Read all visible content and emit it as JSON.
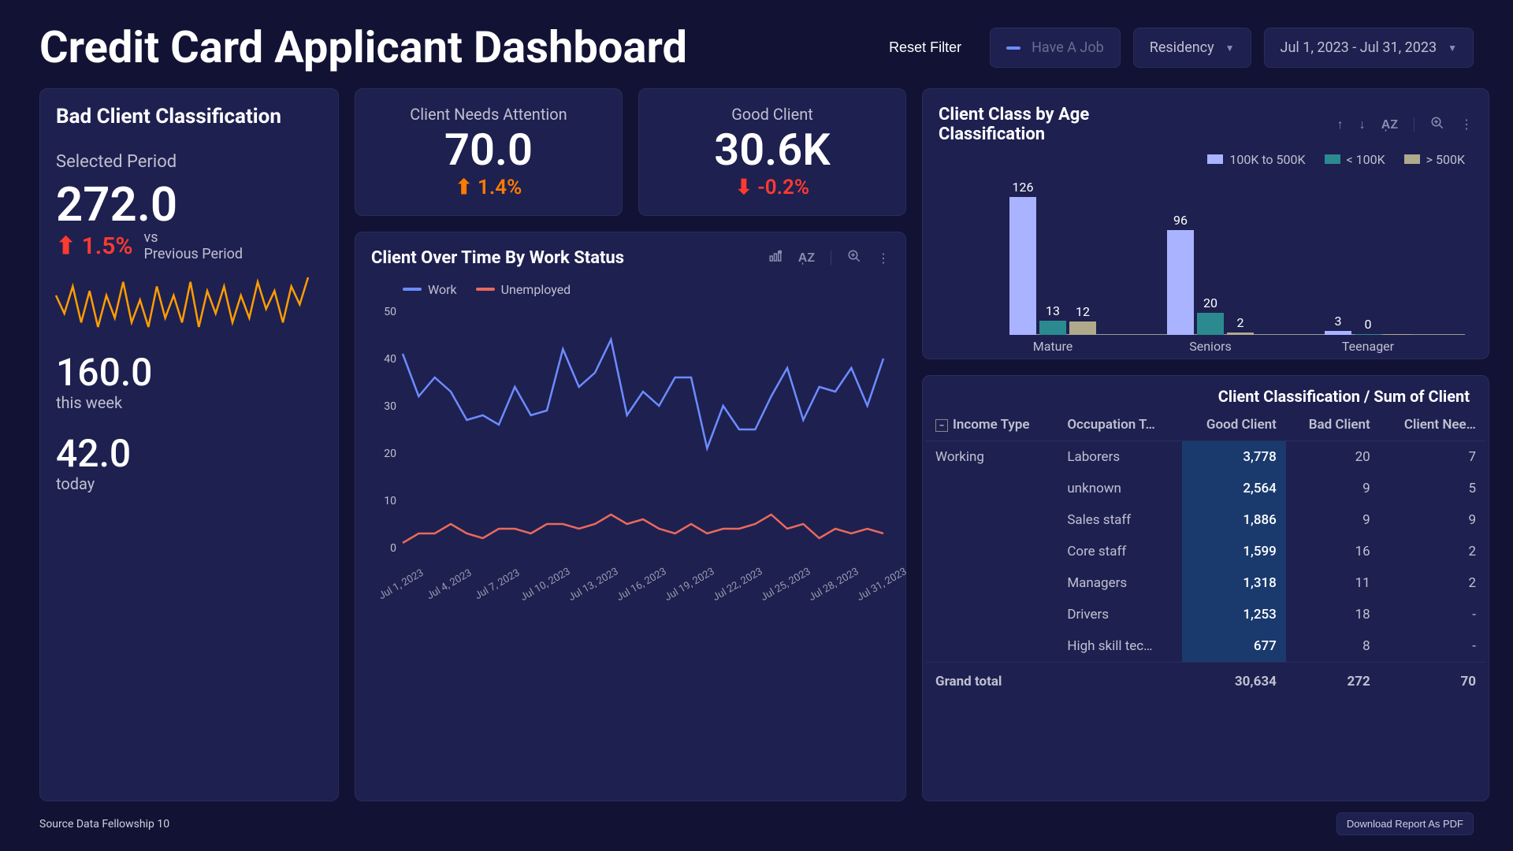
{
  "title": "Credit Card Applicant Dashboard",
  "controls": {
    "reset": "Reset Filter",
    "job_filter_label": "Have A Job",
    "residency_label": "Residency",
    "date_range": "Jul 1, 2023 - Jul 31, 2023"
  },
  "bad_client": {
    "title": "Bad Client Classification",
    "selected_period_label": "Selected Period",
    "selected_period_value": "272.0",
    "change_pct": "1.5%",
    "change_direction": "up",
    "change_color": "#ff3b30",
    "vs_label_top": "vs",
    "vs_label_bottom": "Previous Period",
    "sparkline": {
      "color": "#ff9d00",
      "values": [
        12,
        8,
        14,
        6,
        13,
        5,
        12,
        7,
        15,
        6,
        11,
        5,
        14,
        7,
        12,
        6,
        15,
        5,
        13,
        8,
        14,
        6,
        12,
        7,
        15,
        9,
        13,
        6,
        14,
        10,
        16
      ]
    },
    "this_week_val": "160.0",
    "this_week_label": "this week",
    "today_val": "42.0",
    "today_label": "today"
  },
  "kpis": {
    "attention": {
      "title": "Client Needs Attention",
      "value": "70.0",
      "change": "1.4%",
      "direction": "up",
      "color": "#ff7b00"
    },
    "good": {
      "title": "Good Client",
      "value": "30.6K",
      "change": "-0.2%",
      "direction": "down",
      "color": "#ff3b30"
    }
  },
  "line_chart": {
    "title": "Client Over Time By Work Status",
    "legend": [
      {
        "label": "Work",
        "color": "#6c8cff"
      },
      {
        "label": "Unemployed",
        "color": "#e86a5a"
      }
    ],
    "ylim": [
      0,
      50
    ],
    "yticks": [
      0,
      10,
      20,
      30,
      40,
      50
    ],
    "x_labels": [
      "Jul 1, 2023",
      "Jul 4, 2023",
      "Jul 7, 2023",
      "Jul 10, 2023",
      "Jul 13, 2023",
      "Jul 16, 2023",
      "Jul 19, 2023",
      "Jul 22, 2023",
      "Jul 25, 2023",
      "Jul 28, 2023",
      "Jul 31, 2023"
    ],
    "series": {
      "work": [
        41,
        32,
        36,
        33,
        27,
        28,
        26,
        34,
        28,
        29,
        42,
        34,
        37,
        44,
        28,
        33,
        30,
        36,
        36,
        21,
        30,
        25,
        25,
        32,
        38,
        27,
        34,
        33,
        38,
        30,
        40
      ],
      "unemployed": [
        1,
        3,
        3,
        5,
        3,
        2,
        4,
        4,
        3,
        5,
        5,
        4,
        5,
        7,
        5,
        6,
        4,
        3,
        5,
        3,
        4,
        4,
        5,
        7,
        4,
        5,
        2,
        4,
        3,
        4,
        3
      ]
    }
  },
  "bar_chart": {
    "title": "Client Class by Age Classification",
    "legend": [
      {
        "label": "100K to 500K",
        "color": "#aab3ff"
      },
      {
        "label": "< 100K",
        "color": "#2b8a8f"
      },
      {
        "label": "> 500K",
        "color": "#b0aa8d"
      }
    ],
    "max": 130,
    "groups": [
      {
        "category": "Mature",
        "values": [
          126,
          13,
          12
        ]
      },
      {
        "category": "Seniors",
        "values": [
          96,
          20,
          2
        ]
      },
      {
        "category": "Teenager",
        "values": [
          3,
          0,
          0
        ],
        "label_override": [
          "3",
          "0",
          ""
        ]
      }
    ]
  },
  "table": {
    "supertitle": "Client Classification / Sum of Client",
    "columns": [
      "Income Type",
      "Occupation T…",
      "Good Client",
      "Bad Client",
      "Client Nee…"
    ],
    "row_group": "Working",
    "rows": [
      {
        "occ": "Laborers",
        "good": "3,778",
        "bad": "20",
        "need": "7"
      },
      {
        "occ": "unknown",
        "good": "2,564",
        "bad": "9",
        "need": "5"
      },
      {
        "occ": "Sales staff",
        "good": "1,886",
        "bad": "9",
        "need": "9"
      },
      {
        "occ": "Core staff",
        "good": "1,599",
        "bad": "16",
        "need": "2"
      },
      {
        "occ": "Managers",
        "good": "1,318",
        "bad": "11",
        "need": "2"
      },
      {
        "occ": "Drivers",
        "good": "1,253",
        "bad": "18",
        "need": "-"
      },
      {
        "occ": "High skill tec…",
        "good": "677",
        "bad": "8",
        "need": "-"
      }
    ],
    "grand_total": {
      "label": "Grand total",
      "good": "30,634",
      "bad": "272",
      "need": "70"
    }
  },
  "footer": {
    "source": "Source Data Fellowship 10",
    "download": "Download Report As PDF"
  }
}
